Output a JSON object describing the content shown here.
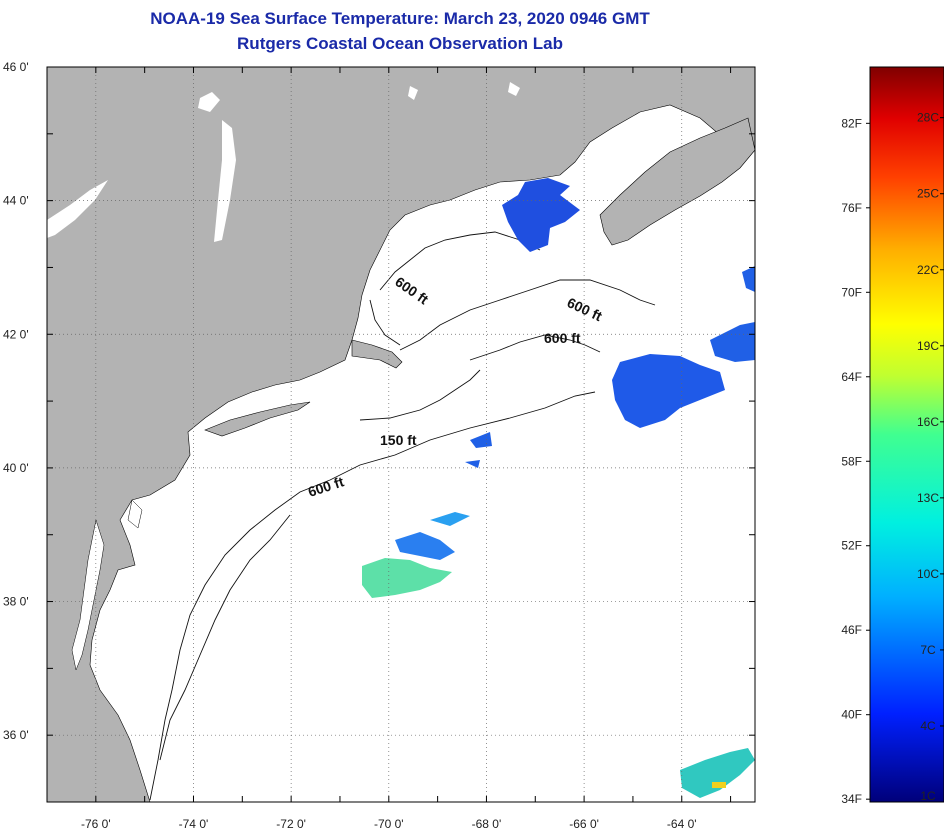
{
  "title": {
    "line1": "NOAA-19 Sea Surface Temperature:  March 23, 2020 0946 GMT",
    "line2": "Rutgers Coastal Ocean Observation Lab"
  },
  "map": {
    "lon_range": [
      -77.0,
      -62.5
    ],
    "lat_range": [
      35.0,
      46.0
    ],
    "lat_ticks": [
      {
        "lat": 46,
        "label": "46 0'"
      },
      {
        "lat": 44,
        "label": "44 0'"
      },
      {
        "lat": 42,
        "label": "42 0'"
      },
      {
        "lat": 40,
        "label": "40 0'"
      },
      {
        "lat": 38,
        "label": "38 0'"
      },
      {
        "lat": 36,
        "label": "36 0'"
      }
    ],
    "lon_ticks": [
      {
        "lon": -76,
        "label": "-76 0'"
      },
      {
        "lon": -74,
        "label": "-74 0'"
      },
      {
        "lon": -72,
        "label": "-72 0'"
      },
      {
        "lon": -70,
        "label": "-70 0'"
      },
      {
        "lon": -68,
        "label": "-68 0'"
      },
      {
        "lon": -66,
        "label": "-66 0'"
      },
      {
        "lon": -64,
        "label": "-64 0'"
      }
    ],
    "contour_labels": [
      "600 ft",
      "600 ft",
      "600 ft",
      "150 ft",
      "600 ft"
    ],
    "colors": {
      "land": "#b3b3b3",
      "water": "#ffffff",
      "sst_cold": "#1f4fe0",
      "sst_mid": "#2aa8f0"
    }
  },
  "colorbar": {
    "range_c": [
      1,
      30
    ],
    "fahrenheit_labels": [
      "82F",
      "76F",
      "70F",
      "64F",
      "58F",
      "52F",
      "46F",
      "40F",
      "34F"
    ],
    "celsius_labels": [
      "28C",
      "25C",
      "22C",
      "19C",
      "16C",
      "13C",
      "10C",
      "7C",
      "4C",
      "1C"
    ]
  }
}
